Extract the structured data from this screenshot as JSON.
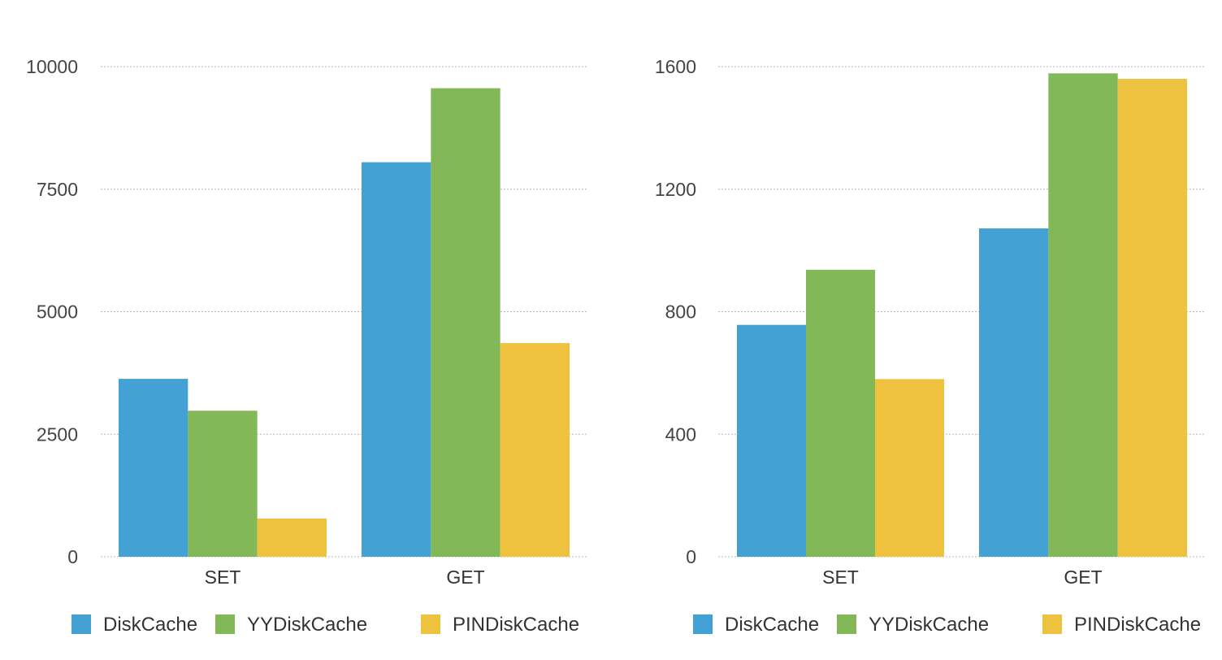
{
  "chart_data": [
    {
      "type": "bar",
      "categories": [
        "SET",
        "GET"
      ],
      "series": [
        {
          "name": "DiskCache",
          "color": "#43a1d4",
          "values": [
            3630,
            8050
          ]
        },
        {
          "name": "YYDiskCache",
          "color": "#82b857",
          "values": [
            2980,
            9560
          ]
        },
        {
          "name": "PINDiskCache",
          "color": "#eec23f",
          "values": [
            780,
            4360
          ]
        }
      ],
      "ylim": [
        0,
        10000
      ],
      "yticks": [
        0,
        2500,
        5000,
        7500,
        10000
      ],
      "grid": true,
      "legend": "bottom"
    },
    {
      "type": "bar",
      "categories": [
        "SET",
        "GET"
      ],
      "series": [
        {
          "name": "DiskCache",
          "color": "#43a1d4",
          "values": [
            757,
            1072
          ]
        },
        {
          "name": "YYDiskCache",
          "color": "#82b857",
          "values": [
            937,
            1578
          ]
        },
        {
          "name": "PINDiskCache",
          "color": "#eec23f",
          "values": [
            580,
            1560
          ]
        }
      ],
      "ylim": [
        0,
        1600
      ],
      "yticks": [
        0,
        400,
        800,
        1200,
        1600
      ],
      "grid": true,
      "legend": "bottom"
    }
  ]
}
